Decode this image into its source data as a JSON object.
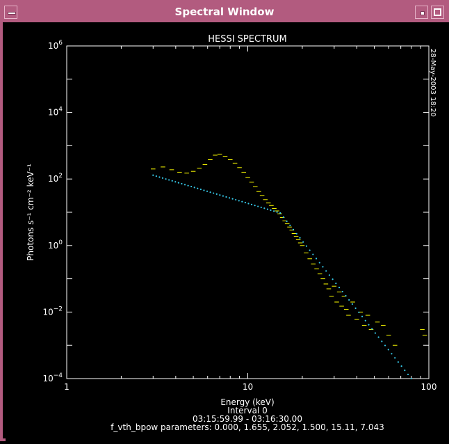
{
  "window": {
    "title": "Spectral Window"
  },
  "chart_data": {
    "type": "scatter",
    "title": "HESSI SPECTRUM",
    "timestamp": "28-May-2003 18:20",
    "xlabel": "Energy (keV)",
    "ylabel": "Photons s⁻¹ cm⁻² keV⁻¹",
    "xscale": "log",
    "yscale": "log",
    "xlim": [
      1,
      100
    ],
    "ylim": [
      0.0001,
      1000000
    ],
    "x_ticks": [
      {
        "value": 1,
        "label": "1"
      },
      {
        "value": 10,
        "label": "10"
      },
      {
        "value": 100,
        "label": "100"
      }
    ],
    "y_ticks": [
      {
        "value": 0.0001,
        "base": "10",
        "exp": "−4"
      },
      {
        "value": 0.01,
        "base": "10",
        "exp": "−2"
      },
      {
        "value": 1,
        "base": "10",
        "exp": "0"
      },
      {
        "value": 100,
        "base": "10",
        "exp": "2"
      },
      {
        "value": 10000,
        "base": "10",
        "exp": "4"
      },
      {
        "value": 1000000,
        "base": "10",
        "exp": "6"
      }
    ],
    "footer": {
      "interval": "Interval 0",
      "time_range": "03:15:59.99 -  03:16:30.00",
      "parameters": "f_vth_bpow parameters: 0.000, 1.655, 2.052, 1.500, 15.11, 7.043"
    },
    "series": [
      {
        "color": "#ffff00",
        "style": "horizontal-bins",
        "x": [
          3.0,
          3.4,
          3.8,
          4.2,
          4.6,
          5.0,
          5.4,
          5.8,
          6.2,
          6.6,
          7.0,
          7.5,
          8.0,
          8.5,
          9.0,
          9.5,
          10.0,
          10.5,
          11.0,
          11.5,
          12.0,
          12.5,
          13.0,
          13.5,
          14.0,
          14.5,
          15.0,
          15.5,
          16.0,
          16.5,
          17.0,
          17.5,
          18.0,
          18.5,
          19.0,
          19.5,
          20.0,
          21.0,
          22.0,
          23.0,
          24.0,
          25.0,
          26.0,
          27.0,
          28.0,
          29.0,
          30.0,
          31.0,
          32.0,
          33.0,
          34.0,
          35.0,
          36.0,
          38.0,
          40.0,
          42.0,
          44.0,
          46.0,
          48.0,
          52.0,
          56.0,
          60.0,
          65.0,
          92.0,
          95.0
        ],
        "y": [
          200,
          230,
          190,
          160,
          150,
          170,
          210,
          270,
          380,
          520,
          560,
          480,
          380,
          300,
          220,
          160,
          110,
          80,
          58,
          42,
          32,
          24,
          19,
          16,
          13,
          11,
          9,
          7,
          5.5,
          4.5,
          3.6,
          2.9,
          2.3,
          1.9,
          1.5,
          1.2,
          1.0,
          0.6,
          0.4,
          0.28,
          0.2,
          0.14,
          0.1,
          0.07,
          0.05,
          0.03,
          0.06,
          0.02,
          0.04,
          0.015,
          0.03,
          0.012,
          0.008,
          0.02,
          0.006,
          0.01,
          0.004,
          0.008,
          0.003,
          0.005,
          0.004,
          0.002,
          0.001,
          0.003,
          0.002
        ]
      },
      {
        "color": "#36c8e8",
        "style": "model-line",
        "x": [
          3.0,
          15.11,
          80.0
        ],
        "y": [
          130,
          9.5,
          0.0001
        ]
      }
    ]
  }
}
